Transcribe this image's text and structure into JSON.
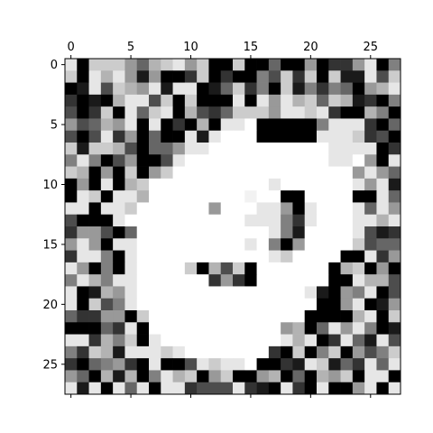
{
  "chart_data": {
    "type": "heatmap",
    "colormap": "gray",
    "rows": 28,
    "cols": 28,
    "xticks": [
      0,
      5,
      10,
      15,
      20,
      25
    ],
    "yticks": [
      0,
      5,
      10,
      15,
      20,
      25
    ],
    "xtick_labels": [
      "0",
      "5",
      "10",
      "15",
      "20",
      "25"
    ],
    "ytick_labels": [
      "0",
      "5",
      "10",
      "15",
      "20",
      "25"
    ],
    "xtick_position": "top",
    "grid": false,
    "values": [
      [
        0.9,
        0.0,
        0.8,
        0.8,
        0.8,
        0.6,
        0.4,
        0.7,
        0.8,
        0.9,
        0.6,
        0.8,
        0.0,
        0.0,
        0.8,
        0.0,
        0.0,
        0.4,
        0.0,
        0.0,
        0.6,
        0.0,
        0.2,
        0.2,
        0.6,
        0.9,
        0.0,
        0.5
      ],
      [
        0.8,
        0.0,
        0.9,
        0.7,
        0.9,
        0.6,
        0.1,
        0.6,
        0.0,
        0.0,
        0.2,
        0.8,
        0.0,
        0.2,
        0.0,
        0.0,
        0.5,
        0.3,
        0.8,
        0.2,
        0.8,
        0.0,
        0.8,
        0.1,
        0.1,
        0.9,
        0.3,
        0.8
      ],
      [
        0.0,
        0.1,
        0.9,
        0.3,
        0.8,
        0.7,
        0.6,
        0.9,
        0.1,
        0.9,
        0.9,
        0.0,
        0.1,
        0.4,
        0.8,
        0.2,
        0.5,
        0.0,
        0.8,
        0.1,
        0.5,
        0.2,
        0.5,
        0.4,
        0.0,
        0.6,
        0.7,
        0.9
      ],
      [
        0.2,
        0.0,
        0.1,
        0.0,
        0.7,
        0.9,
        0.9,
        0.3,
        0.8,
        0.0,
        0.8,
        0.0,
        0.0,
        0.0,
        0.9,
        0.0,
        0.9,
        0.6,
        0.9,
        0.7,
        0.8,
        0.4,
        0.8,
        0.7,
        0.1,
        0.2,
        0.0,
        0.5
      ],
      [
        0.3,
        0.0,
        0.2,
        0.8,
        0.0,
        0.9,
        0.4,
        0.8,
        0.9,
        0.0,
        0.7,
        0.3,
        0.2,
        0.4,
        0.8,
        0.8,
        0.8,
        0.6,
        0.9,
        0.9,
        0.8,
        0.9,
        0.2,
        0.0,
        0.0,
        0.7,
        0.5,
        0.0
      ],
      [
        0.6,
        0.3,
        0.4,
        0.7,
        0.6,
        0.9,
        0.0,
        0.9,
        0.0,
        0.2,
        0.0,
        0.7,
        0.0,
        0.9,
        0.9,
        1.0,
        0.0,
        0.0,
        0.0,
        0.0,
        0.0,
        0.5,
        0.9,
        0.9,
        0.9,
        0.2,
        0.0,
        0.4
      ],
      [
        0.3,
        0.0,
        0.3,
        0.9,
        0.2,
        0.6,
        0.0,
        0.4,
        0.0,
        0.0,
        0.9,
        0.1,
        0.9,
        1.0,
        1.0,
        1.0,
        0.0,
        0.0,
        0.0,
        0.0,
        0.0,
        0.9,
        0.9,
        0.9,
        0.8,
        0.2,
        0.3,
        0.0
      ],
      [
        0.8,
        0.1,
        0.8,
        0.8,
        0.7,
        0.3,
        0.0,
        0.4,
        0.4,
        0.6,
        0.9,
        0.9,
        1.0,
        1.0,
        1.0,
        1.0,
        1.0,
        1.0,
        1.0,
        1.0,
        1.0,
        1.0,
        0.9,
        0.9,
        0.9,
        0.9,
        0.0,
        0.2
      ],
      [
        0.5,
        0.9,
        0.5,
        0.0,
        0.3,
        0.6,
        0.0,
        0.0,
        0.3,
        0.9,
        1.0,
        1.0,
        1.0,
        1.0,
        1.0,
        1.0,
        1.0,
        1.0,
        1.0,
        1.0,
        1.0,
        1.0,
        0.9,
        0.9,
        1.0,
        0.6,
        0.0,
        0.9
      ],
      [
        0.8,
        0.7,
        0.0,
        0.6,
        0.0,
        0.8,
        0.0,
        0.6,
        0.8,
        1.0,
        1.0,
        1.0,
        1.0,
        1.0,
        1.0,
        1.0,
        1.0,
        1.0,
        1.0,
        1.0,
        1.0,
        1.0,
        1.0,
        1.0,
        0.6,
        0.9,
        0.6,
        0.4
      ],
      [
        0.0,
        0.6,
        0.0,
        0.9,
        0.0,
        0.7,
        0.8,
        1.0,
        1.0,
        1.0,
        1.0,
        1.0,
        1.0,
        1.0,
        1.0,
        1.0,
        1.0,
        0.9,
        1.0,
        1.0,
        1.0,
        1.0,
        1.0,
        1.0,
        0.9,
        0.6,
        0.9,
        0.1
      ],
      [
        0.0,
        0.9,
        0.8,
        0.0,
        0.9,
        0.9,
        0.7,
        1.0,
        1.0,
        1.0,
        1.0,
        1.0,
        1.0,
        1.0,
        1.0,
        0.95,
        1.0,
        1.0,
        0.0,
        0.0,
        1.0,
        1.0,
        1.0,
        1.0,
        0.0,
        0.0,
        0.9,
        0.4
      ],
      [
        0.9,
        0.9,
        0.0,
        0.9,
        0.9,
        0.8,
        1.0,
        1.0,
        1.0,
        1.0,
        1.0,
        1.0,
        0.6,
        1.0,
        1.0,
        1.0,
        0.9,
        0.9,
        0.6,
        0.0,
        0.9,
        1.0,
        1.0,
        1.0,
        0.9,
        0.4,
        0.9,
        0.6
      ],
      [
        0.3,
        0.0,
        0.0,
        0.0,
        0.9,
        1.0,
        1.0,
        1.0,
        1.0,
        1.0,
        1.0,
        1.0,
        1.0,
        1.0,
        1.0,
        0.9,
        0.9,
        0.9,
        0.5,
        0.2,
        0.9,
        1.0,
        1.0,
        1.0,
        0.9,
        0.9,
        0.7,
        0.9
      ],
      [
        0.2,
        0.6,
        0.6,
        0.3,
        0.0,
        0.4,
        1.0,
        1.0,
        1.0,
        1.0,
        1.0,
        1.0,
        1.0,
        1.0,
        1.0,
        1.0,
        1.0,
        0.9,
        0.5,
        0.1,
        1.0,
        1.0,
        1.0,
        1.0,
        0.9,
        0.3,
        0.1,
        0.2
      ],
      [
        0.6,
        0.9,
        0.6,
        0.0,
        0.9,
        0.9,
        1.0,
        1.0,
        1.0,
        1.0,
        1.0,
        1.0,
        1.0,
        1.0,
        1.0,
        0.9,
        1.0,
        0.5,
        0.0,
        0.6,
        1.0,
        1.0,
        1.0,
        1.0,
        0.8,
        0.3,
        0.4,
        0.4
      ],
      [
        0.2,
        0.9,
        0.9,
        0.5,
        0.0,
        0.9,
        1.0,
        1.0,
        1.0,
        1.0,
        1.0,
        1.0,
        1.0,
        1.0,
        1.0,
        1.0,
        1.0,
        0.9,
        0.8,
        1.0,
        1.0,
        1.0,
        1.0,
        0.0,
        0.0,
        0.9,
        0.2,
        0.6
      ],
      [
        0.9,
        0.6,
        0.0,
        0.5,
        0.0,
        0.9,
        1.0,
        1.0,
        1.0,
        1.0,
        0.8,
        0.0,
        0.7,
        0.3,
        0.8,
        0.0,
        1.0,
        1.0,
        1.0,
        1.0,
        1.0,
        1.0,
        0.0,
        0.7,
        0.8,
        0.0,
        0.6,
        0.0
      ],
      [
        0.5,
        0.9,
        0.7,
        0.5,
        0.9,
        0.9,
        1.0,
        1.0,
        1.0,
        1.0,
        1.0,
        1.0,
        0.2,
        0.6,
        0.2,
        0.0,
        1.0,
        1.0,
        1.0,
        1.0,
        1.0,
        1.0,
        0.0,
        0.0,
        0.9,
        0.7,
        0.7,
        0.3
      ],
      [
        0.9,
        0.0,
        0.1,
        0.7,
        0.6,
        0.9,
        1.0,
        1.0,
        1.0,
        1.0,
        1.0,
        1.0,
        1.0,
        1.0,
        1.0,
        1.0,
        1.0,
        1.0,
        1.0,
        1.0,
        0.9,
        0.1,
        0.0,
        0.6,
        0.5,
        0.9,
        0.0,
        0.3
      ],
      [
        0.9,
        0.0,
        0.8,
        0.3,
        0.5,
        0.9,
        1.0,
        1.0,
        1.0,
        1.0,
        1.0,
        1.0,
        1.0,
        1.0,
        1.0,
        1.0,
        1.0,
        1.0,
        1.0,
        1.0,
        1.0,
        0.0,
        0.0,
        0.6,
        0.9,
        0.0,
        0.1,
        0.6
      ],
      [
        0.4,
        0.2,
        0.2,
        0.6,
        0.6,
        0.0,
        0.8,
        1.0,
        1.0,
        1.0,
        1.0,
        1.0,
        1.0,
        1.0,
        1.0,
        1.0,
        1.0,
        1.0,
        1.0,
        1.0,
        0.0,
        0.0,
        0.0,
        0.0,
        0.7,
        0.9,
        0.0,
        0.8
      ],
      [
        0.0,
        0.0,
        0.0,
        0.4,
        0.2,
        0.9,
        0.0,
        1.0,
        1.0,
        1.0,
        1.0,
        1.0,
        1.0,
        1.0,
        1.0,
        1.0,
        1.0,
        1.0,
        0.6,
        0.7,
        0.0,
        0.4,
        0.9,
        0.6,
        0.9,
        0.5,
        0.0,
        0.1
      ],
      [
        0.9,
        0.9,
        0.2,
        0.7,
        0.5,
        0.8,
        0.0,
        0.9,
        1.0,
        1.0,
        1.0,
        1.0,
        1.0,
        1.0,
        1.0,
        1.0,
        1.0,
        1.0,
        0.9,
        0.7,
        0.9,
        0.0,
        0.2,
        0.9,
        0.4,
        0.1,
        0.9,
        0.3
      ],
      [
        0.5,
        0.2,
        0.8,
        0.7,
        0.1,
        0.9,
        0.9,
        0.9,
        0.8,
        0.9,
        1.0,
        1.0,
        1.0,
        1.0,
        1.0,
        1.0,
        1.0,
        0.2,
        0.0,
        0.8,
        0.0,
        0.5,
        0.8,
        0.0,
        0.6,
        0.3,
        0.5,
        0.8
      ],
      [
        0.2,
        0.0,
        0.4,
        0.5,
        0.6,
        0.2,
        0.0,
        0.9,
        0.0,
        0.0,
        0.3,
        0.9,
        0.8,
        0.9,
        0.9,
        1.0,
        0.0,
        0.0,
        0.2,
        0.1,
        0.9,
        0.8,
        0.1,
        0.4,
        0.2,
        0.9,
        0.4,
        0.9
      ],
      [
        0.6,
        0.4,
        0.0,
        0.7,
        0.1,
        0.7,
        0.0,
        0.5,
        0.9,
        0.7,
        0.8,
        0.0,
        0.6,
        0.8,
        0.0,
        0.0,
        0.6,
        0.7,
        0.0,
        0.4,
        0.0,
        0.7,
        0.6,
        0.8,
        0.0,
        0.9,
        0.9,
        0.0
      ],
      [
        0.9,
        0.1,
        0.9,
        0.0,
        0.9,
        0.4,
        0.9,
        0.0,
        0.9,
        0.9,
        0.2,
        0.3,
        0.3,
        0.3,
        0.9,
        0.2,
        0.1,
        0.0,
        0.9,
        0.2,
        0.0,
        0.9,
        0.0,
        0.0,
        0.6,
        0.9,
        0.0,
        0.9
      ]
    ]
  }
}
